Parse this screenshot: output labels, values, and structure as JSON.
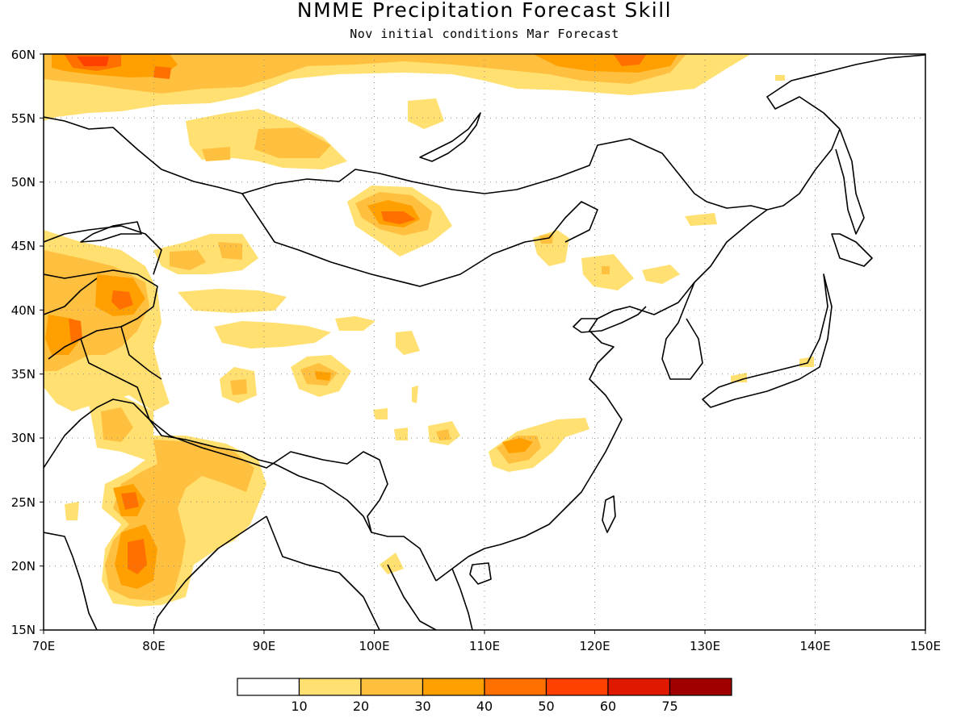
{
  "title": "NMME Precipitation Forecast Skill",
  "subtitle": "Nov initial conditions  Mar Forecast",
  "map": {
    "lon_range": [
      70,
      150
    ],
    "lat_range": [
      15,
      60
    ],
    "lon_ticks": [
      "70E",
      "80E",
      "90E",
      "100E",
      "110E",
      "120E",
      "130E",
      "140E",
      "150E"
    ],
    "lat_ticks": [
      "15N",
      "20N",
      "25N",
      "30N",
      "35N",
      "40N",
      "45N",
      "50N",
      "55N",
      "60N"
    ],
    "grid": "dotted"
  },
  "colorbar": {
    "colors": [
      "#ffffff",
      "#ffe070",
      "#ffc040",
      "#ffa000",
      "#ff7000",
      "#ff4000",
      "#e01800",
      "#a00000"
    ],
    "labels": [
      "10",
      "20",
      "30",
      "40",
      "50",
      "60",
      "75"
    ]
  }
}
